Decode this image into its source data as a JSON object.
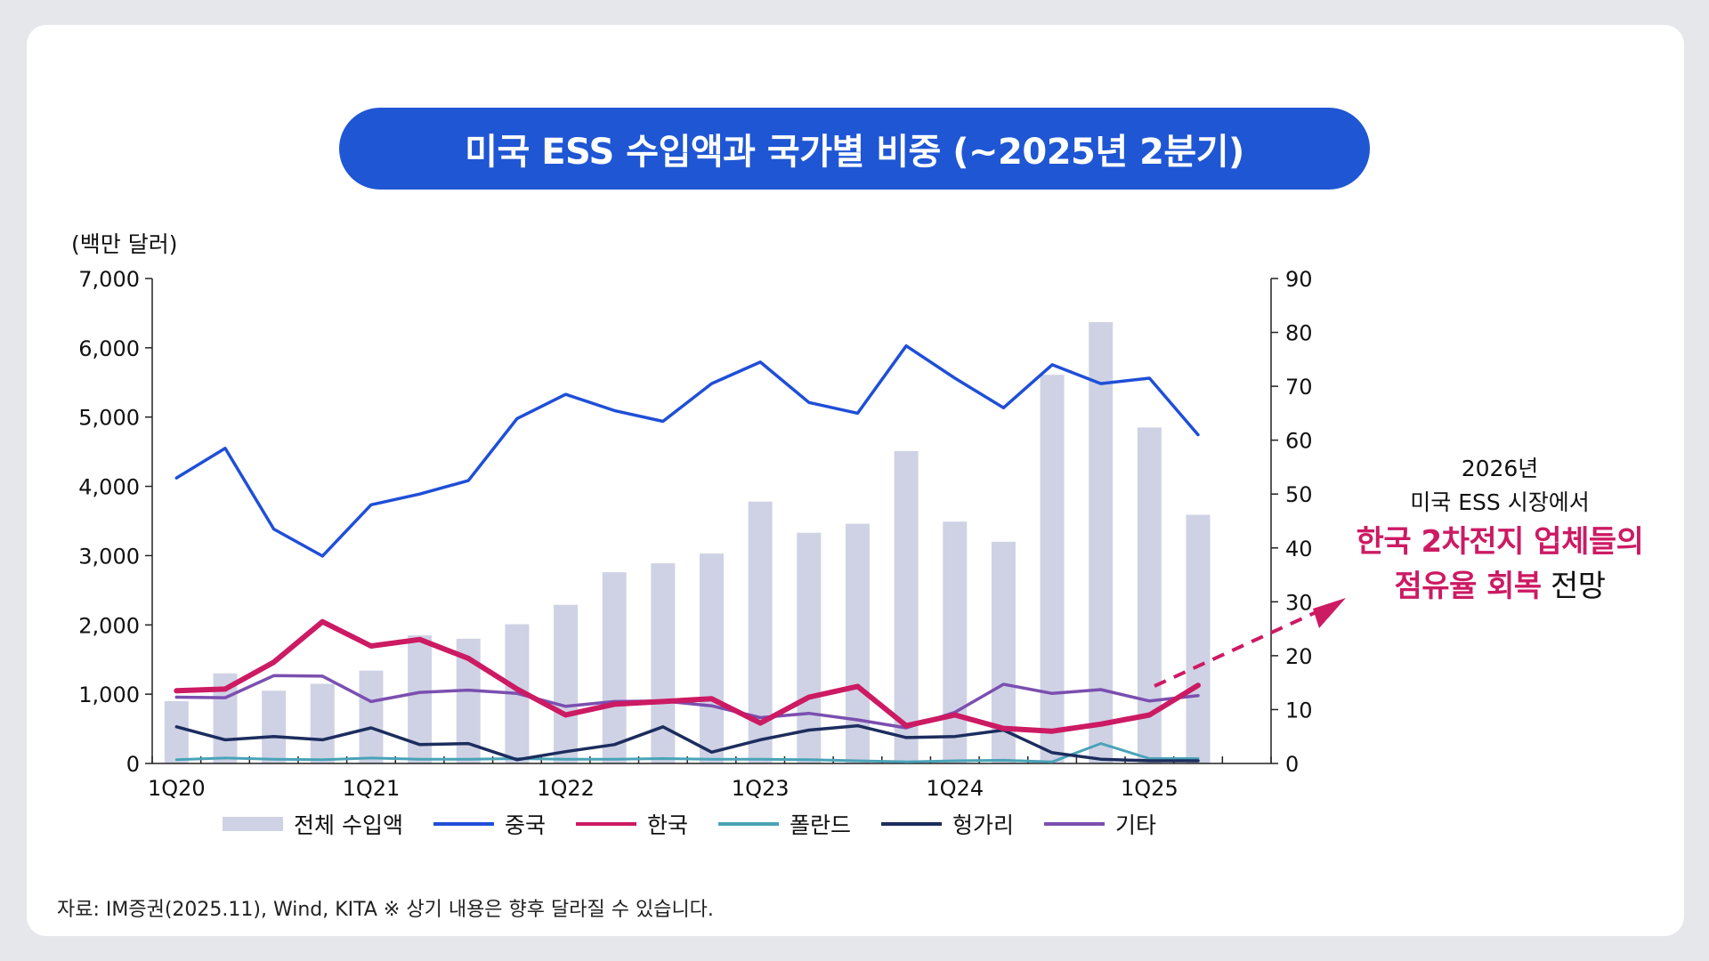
{
  "title": "미국 ESS 수입액과 국가별 비중 (~2025년 2분기)",
  "unit_label": "(백만 달러)",
  "annotation": {
    "line1": "2026년",
    "line2": "미국 ESS 시장에서",
    "highlight1": "한국 2차전지 업체들의",
    "highlight2_pink": "점유율 회복",
    "highlight2_plain": " 전망"
  },
  "source": "자료: IM증권(2025.11), Wind, KITA ※ 상기 내용은 향후 달라질 수 있습니다.",
  "colors": {
    "title_bg": "#1f56d3",
    "bar": "#cfd2e4",
    "china": "#1f4fd8",
    "korea": "#cc1a63",
    "poland": "#4aa3b8",
    "hungary": "#1c2d5e",
    "other": "#7b4fb0",
    "arrow": "#cc1a63"
  },
  "chart_data": {
    "type": "bar+line",
    "title": "미국 ESS 수입액과 국가별 비중 (~2025년 2분기)",
    "categories": [
      "1Q20",
      "2Q20",
      "3Q20",
      "4Q20",
      "1Q21",
      "2Q21",
      "3Q21",
      "4Q21",
      "1Q22",
      "2Q22",
      "3Q22",
      "4Q22",
      "1Q23",
      "2Q23",
      "3Q23",
      "4Q23",
      "1Q24",
      "2Q24",
      "3Q24",
      "4Q24",
      "1Q25",
      "2Q25"
    ],
    "x_tick_labels": [
      "1Q20",
      "1Q21",
      "1Q22",
      "1Q23",
      "1Q24",
      "1Q25"
    ],
    "x_slots": 23,
    "left_axis": {
      "label": "(백만 달러)",
      "ylim": [
        0,
        7000
      ],
      "ticks": [
        "0",
        "1,000",
        "2,000",
        "3,000",
        "4,000",
        "5,000",
        "6,000",
        "7,000"
      ],
      "tick_values": [
        0,
        1000,
        2000,
        3000,
        4000,
        5000,
        6000,
        7000
      ]
    },
    "right_axis": {
      "ylim": [
        0,
        90
      ],
      "ticks": [
        "0",
        "10",
        "20",
        "30",
        "40",
        "50",
        "60",
        "70",
        "80",
        "90"
      ],
      "tick_values": [
        0,
        10,
        20,
        30,
        40,
        50,
        60,
        70,
        80,
        90
      ]
    },
    "bars": {
      "name": "전체 수입액",
      "axis": "left",
      "values": [
        900,
        1300,
        1050,
        1150,
        1340,
        1850,
        1800,
        2010,
        2290,
        2760,
        2890,
        3030,
        3780,
        3330,
        3460,
        4510,
        3490,
        3200,
        5610,
        6370,
        4850,
        3590
      ]
    },
    "series": [
      {
        "name": "중국",
        "axis": "right",
        "key": "china",
        "values": [
          53,
          58.5,
          43.5,
          38.5,
          48,
          50,
          52.5,
          64,
          68.5,
          65.5,
          63.5,
          70.5,
          74.5,
          67,
          65,
          77.5,
          71.5,
          66,
          74,
          70.5,
          71.5,
          61
        ]
      },
      {
        "name": "한국",
        "axis": "right",
        "key": "korea",
        "values": [
          13.5,
          13.8,
          18.8,
          26.3,
          21.8,
          23,
          19.5,
          13.8,
          9,
          11,
          11.5,
          12,
          7.5,
          12.3,
          14.3,
          7,
          9,
          6.5,
          6,
          7.3,
          9,
          14.5
        ]
      },
      {
        "name": "폴란드",
        "axis": "right",
        "key": "poland",
        "values": [
          0.7,
          1,
          0.8,
          0.7,
          1,
          0.8,
          0.8,
          0.9,
          0.8,
          0.8,
          0.9,
          0.8,
          0.8,
          0.7,
          0.5,
          0.3,
          0.5,
          0.6,
          0.3,
          3.7,
          0.9,
          0.9
        ]
      },
      {
        "name": "헝가리",
        "axis": "right",
        "key": "hungary",
        "values": [
          6.8,
          4.4,
          5,
          4.4,
          6.6,
          3.5,
          3.7,
          0.7,
          2.2,
          3.5,
          6.8,
          2.1,
          4.4,
          6.2,
          7,
          4.8,
          5,
          6.2,
          2,
          0.8,
          0.5,
          0.5
        ]
      },
      {
        "name": "기타",
        "axis": "right",
        "key": "other",
        "values": [
          12.3,
          12.2,
          16.3,
          16.2,
          11.5,
          13.2,
          13.6,
          13,
          10.6,
          11.5,
          11.6,
          10.7,
          8.5,
          9.3,
          8.1,
          6.6,
          9.5,
          14.7,
          13,
          13.7,
          11.6,
          12.6
        ]
      }
    ]
  }
}
